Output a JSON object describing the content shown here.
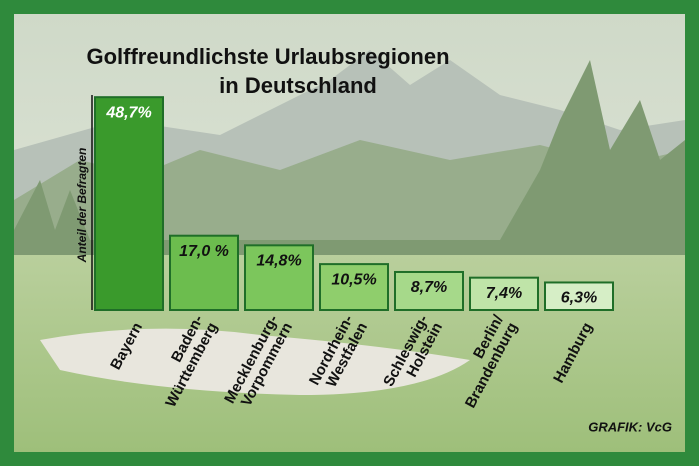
{
  "chart_data": {
    "type": "bar",
    "title": [
      "Golffreundlichste Urlaubsregionen",
      "in Deutschland"
    ],
    "y_label": "Anteil der Befragten",
    "categories": [
      [
        "Bayern"
      ],
      [
        "Baden-",
        "Württemberg"
      ],
      [
        "Mecklenburg-",
        "Vorpommern"
      ],
      [
        "Nordrhein-",
        "Westfalen"
      ],
      [
        "Schleswig-",
        "Holstein"
      ],
      [
        "Berlin/",
        "Brandenburg"
      ],
      [
        "Hamburg"
      ]
    ],
    "values": [
      48.7,
      17.0,
      14.8,
      10.5,
      8.7,
      7.4,
      6.3
    ],
    "value_labels": [
      "48,7%",
      "17,0 %",
      "14,8%",
      "10,5%",
      "8,7%",
      "7,4%",
      "6,3%"
    ],
    "colors": [
      "#3a9a2c",
      "#6cbd4e",
      "#7cc65c",
      "#8fce6c",
      "#a6d98a",
      "#bfe4a8",
      "#d6eec6"
    ],
    "source": "GRAFIK: VcG"
  }
}
